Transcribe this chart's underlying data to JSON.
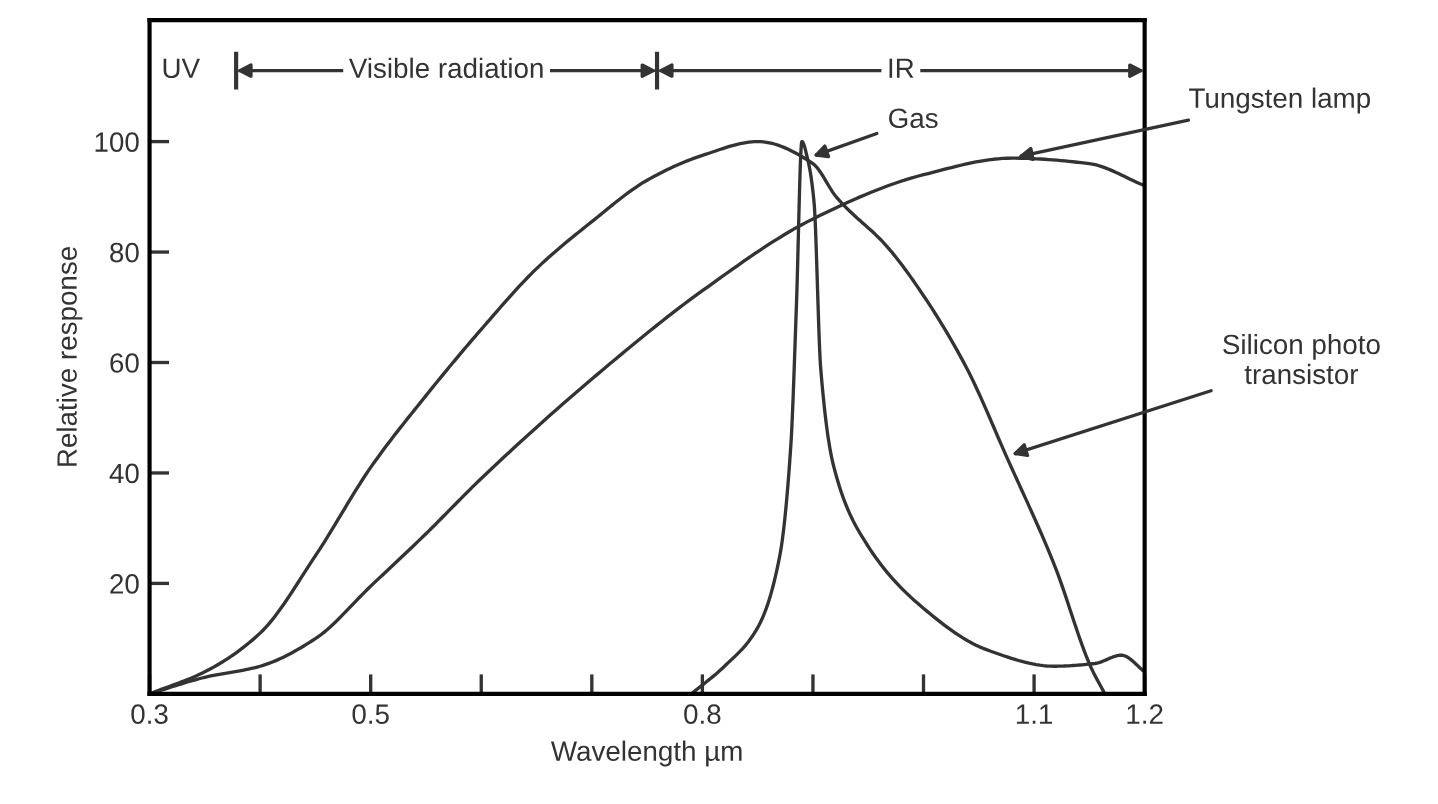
{
  "chart_data": {
    "type": "line",
    "xlabel": "Wavelength µm",
    "ylabel": "Relative response",
    "xlim": [
      0.3,
      1.2
    ],
    "ylim": [
      0,
      122
    ],
    "xticks": [
      0.3,
      {
        "value": 0.4,
        "label": null
      },
      0.5,
      {
        "value": 0.6,
        "label": null
      },
      {
        "value": 0.7,
        "label": null
      },
      0.8,
      {
        "value": 0.9,
        "label": null
      },
      {
        "value": 1.0,
        "label": null
      },
      1.1,
      1.2
    ],
    "yticks": [
      20,
      40,
      60,
      80,
      100
    ],
    "grid": false,
    "legend": false,
    "marker": "none",
    "line_style": "solid",
    "annotations": [
      "UV",
      "Visible radiation",
      "IR"
    ],
    "series": [
      {
        "name": "Silicon photo transistor",
        "color": "#333333",
        "x": [
          0.3,
          0.35,
          0.4,
          0.45,
          0.5,
          0.55,
          0.6,
          0.65,
          0.7,
          0.75,
          0.8,
          0.85,
          0.9,
          0.921,
          0.967,
          0.997,
          1.039,
          1.075,
          1.119,
          1.151,
          1.164
        ],
        "values": [
          0,
          4,
          11,
          25,
          41,
          54,
          66,
          77,
          85.5,
          93,
          97.5,
          100,
          96,
          90,
          81,
          73,
          59,
          43,
          23,
          5,
          0
        ]
      },
      {
        "name": "Tungsten lamp",
        "color": "#333333",
        "x": [
          0.3,
          0.35,
          0.4,
          0.45,
          0.5,
          0.55,
          0.6,
          0.7,
          0.8,
          0.9,
          1.0,
          1.08,
          1.15,
          1.2
        ],
        "values": [
          0,
          3,
          5,
          10,
          19.5,
          29,
          39,
          57,
          73,
          86,
          94,
          97,
          96,
          92
        ]
      },
      {
        "name": "Gas",
        "color": "#333333",
        "x": [
          0.79,
          0.82,
          0.85,
          0.87,
          0.88,
          0.885,
          0.89,
          0.895,
          0.901,
          0.907,
          0.919,
          0.949,
          0.997,
          1.057,
          1.118,
          1.155,
          1.179,
          1.2
        ],
        "values": [
          0,
          5,
          12,
          25,
          45,
          70,
          100,
          97,
          89,
          59,
          41,
          27,
          16,
          8,
          5,
          5.5,
          7,
          4
        ]
      }
    ]
  }
}
